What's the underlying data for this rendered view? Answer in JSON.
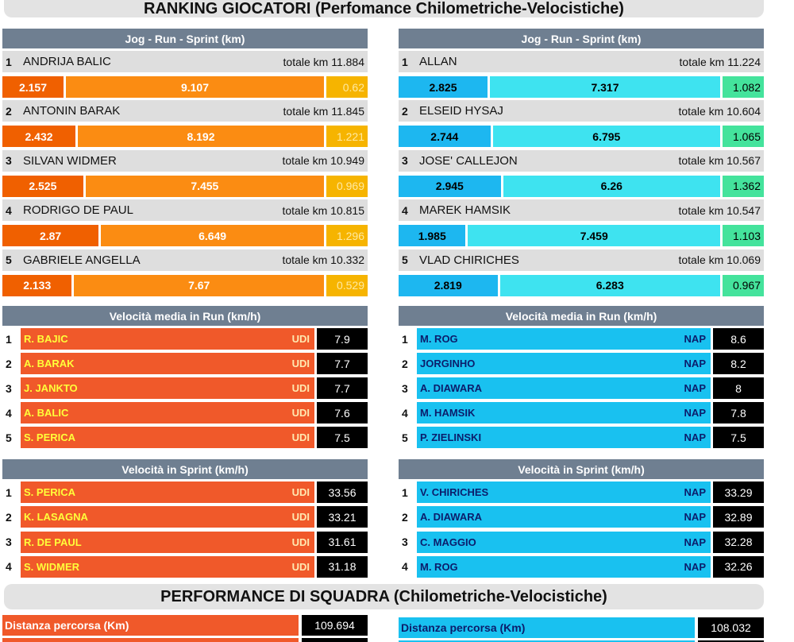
{
  "title": "RANKING GIOCATORI (Perfomance Chilometriche-Velocistiche)",
  "panels": [
    {
      "km": {
        "header": "Jog  -  Run  -  Sprint    (km)",
        "players": [
          {
            "rank": 1,
            "name": "ANDRIJA BALIC",
            "total": "totale km 11.884",
            "jog": 2.157,
            "run": 9.107,
            "sprint": 0.62
          },
          {
            "rank": 2,
            "name": "ANTONIN BARAK",
            "total": "totale km 11.845",
            "jog": 2.432,
            "run": 8.192,
            "sprint": 1.221
          },
          {
            "rank": 3,
            "name": "SILVAN WIDMER",
            "total": "totale km 10.949",
            "jog": 2.525,
            "run": 7.455,
            "sprint": 0.969
          },
          {
            "rank": 4,
            "name": "RODRIGO DE PAUL",
            "total": "totale km 10.815",
            "jog": 2.87,
            "run": 6.649,
            "sprint": 1.296
          },
          {
            "rank": 5,
            "name": "GABRIELE ANGELLA",
            "total": "totale km 10.332",
            "jog": 2.133,
            "run": 7.67,
            "sprint": 0.529
          }
        ]
      },
      "run_speed": {
        "header": "Velocità media in Run      (km/h)",
        "rows": [
          {
            "rank": 1,
            "name": "R. BAJIC",
            "team": "UDI",
            "value": 7.9
          },
          {
            "rank": 2,
            "name": "A. BARAK",
            "team": "UDI",
            "value": 7.7
          },
          {
            "rank": 3,
            "name": "J. JANKTO",
            "team": "UDI",
            "value": 7.7
          },
          {
            "rank": 4,
            "name": "A. BALIC",
            "team": "UDI",
            "value": 7.6
          },
          {
            "rank": 5,
            "name": "S. PERICA",
            "team": "UDI",
            "value": 7.5
          }
        ]
      },
      "sprint_speed": {
        "header": "Velocità in Sprint (km/h)",
        "rows": [
          {
            "rank": 1,
            "name": "S. PERICA",
            "team": "UDI",
            "value": 33.56
          },
          {
            "rank": 2,
            "name": "K. LASAGNA",
            "team": "UDI",
            "value": 33.21
          },
          {
            "rank": 3,
            "name": "R. DE PAUL",
            "team": "UDI",
            "value": 31.61
          },
          {
            "rank": 4,
            "name": "S. WIDMER",
            "team": "UDI",
            "value": 31.18
          }
        ]
      },
      "team": {
        "label": "Distanza percorsa (Km)",
        "value": 109.694
      }
    },
    {
      "km": {
        "header": "Jog  -  Run  -  Sprint    (km)",
        "players": [
          {
            "rank": 1,
            "name": "ALLAN",
            "total": "totale km 11.224",
            "jog": 2.825,
            "run": 7.317,
            "sprint": 1.082
          },
          {
            "rank": 2,
            "name": "ELSEID HYSAJ",
            "total": "totale km 10.604",
            "jog": 2.744,
            "run": 6.795,
            "sprint": 1.065
          },
          {
            "rank": 3,
            "name": "JOSE' CALLEJON",
            "total": "totale km 10.567",
            "jog": 2.945,
            "run": 6.26,
            "sprint": 1.362
          },
          {
            "rank": 4,
            "name": "MAREK HAMSIK",
            "total": "totale km 10.547",
            "jog": 1.985,
            "run": 7.459,
            "sprint": 1.103
          },
          {
            "rank": 5,
            "name": "VLAD CHIRICHES",
            "total": "totale km 10.069",
            "jog": 2.819,
            "run": 6.283,
            "sprint": 0.967
          }
        ]
      },
      "run_speed": {
        "header": "Velocità media in Run      (km/h)",
        "rows": [
          {
            "rank": 1,
            "name": "M. ROG",
            "team": "NAP",
            "value": 8.6
          },
          {
            "rank": 2,
            "name": "JORGINHO",
            "team": "NAP",
            "value": 8.2
          },
          {
            "rank": 3,
            "name": "A. DIAWARA",
            "team": "NAP",
            "value": 8
          },
          {
            "rank": 4,
            "name": "M. HAMSIK",
            "team": "NAP",
            "value": 7.8
          },
          {
            "rank": 5,
            "name": "P. ZIELINSKI",
            "team": "NAP",
            "value": 7.5
          }
        ]
      },
      "sprint_speed": {
        "header": "Velocità in Sprint (km/h)",
        "rows": [
          {
            "rank": 1,
            "name": "V. CHIRICHES",
            "team": "NAP",
            "value": 33.29
          },
          {
            "rank": 2,
            "name": "A. DIAWARA",
            "team": "NAP",
            "value": 32.89
          },
          {
            "rank": 3,
            "name": "C. MAGGIO",
            "team": "NAP",
            "value": 32.28
          },
          {
            "rank": 4,
            "name": "M. ROG",
            "team": "NAP",
            "value": 32.26
          }
        ]
      },
      "team": {
        "label": "Distanza percorsa (Km)",
        "value": 108.032
      }
    }
  ],
  "team_title": "PERFORMANCE DI SQUADRA (Chilometriche-Velocistiche)"
}
